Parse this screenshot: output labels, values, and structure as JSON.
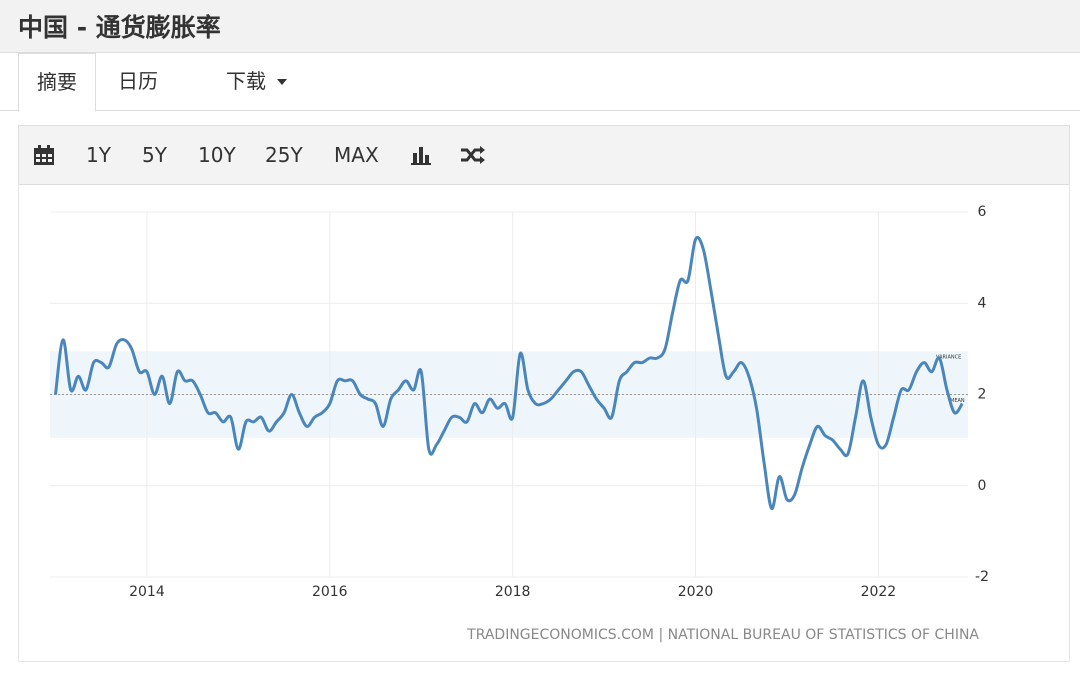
{
  "header": {
    "title": "中国 - 通货膨胀率"
  },
  "tabs": [
    "摘要",
    "日历",
    "下载"
  ],
  "toolbar": {
    "ranges": [
      "1Y",
      "5Y",
      "10Y",
      "25Y",
      "MAX"
    ]
  },
  "chart_data": {
    "type": "line",
    "source": "TRADINGECONOMICS.COM | NATIONAL BUREAU OF STATISTICS OF CHINA",
    "x": [
      2013.0,
      2013.083,
      2013.167,
      2013.25,
      2013.333,
      2013.417,
      2013.5,
      2013.583,
      2013.667,
      2013.75,
      2013.833,
      2013.917,
      2014.0,
      2014.083,
      2014.167,
      2014.25,
      2014.333,
      2014.417,
      2014.5,
      2014.583,
      2014.667,
      2014.75,
      2014.833,
      2014.917,
      2015.0,
      2015.083,
      2015.167,
      2015.25,
      2015.333,
      2015.417,
      2015.5,
      2015.583,
      2015.667,
      2015.75,
      2015.833,
      2015.917,
      2016.0,
      2016.083,
      2016.167,
      2016.25,
      2016.333,
      2016.417,
      2016.5,
      2016.583,
      2016.667,
      2016.75,
      2016.833,
      2016.917,
      2017.0,
      2017.083,
      2017.167,
      2017.25,
      2017.333,
      2017.417,
      2017.5,
      2017.583,
      2017.667,
      2017.75,
      2017.833,
      2017.917,
      2018.0,
      2018.083,
      2018.167,
      2018.25,
      2018.333,
      2018.417,
      2018.5,
      2018.583,
      2018.667,
      2018.75,
      2018.833,
      2018.917,
      2019.0,
      2019.083,
      2019.167,
      2019.25,
      2019.333,
      2019.417,
      2019.5,
      2019.583,
      2019.667,
      2019.75,
      2019.833,
      2019.917,
      2020.0,
      2020.083,
      2020.167,
      2020.25,
      2020.333,
      2020.417,
      2020.5,
      2020.583,
      2020.667,
      2020.75,
      2020.833,
      2020.917,
      2021.0,
      2021.083,
      2021.167,
      2021.25,
      2021.333,
      2021.417,
      2021.5,
      2021.583,
      2021.667,
      2021.75,
      2021.833,
      2021.917,
      2022.0,
      2022.083,
      2022.167,
      2022.25,
      2022.333,
      2022.417,
      2022.5,
      2022.583,
      2022.667,
      2022.75,
      2022.833,
      2022.917
    ],
    "series": [
      {
        "color": "#4a86bb",
        "values": [
          2.0,
          3.2,
          2.1,
          2.4,
          2.1,
          2.7,
          2.7,
          2.6,
          3.1,
          3.2,
          3.0,
          2.5,
          2.5,
          2.0,
          2.4,
          1.8,
          2.5,
          2.3,
          2.3,
          2.0,
          1.6,
          1.6,
          1.4,
          1.5,
          0.8,
          1.4,
          1.4,
          1.5,
          1.2,
          1.4,
          1.6,
          2.0,
          1.6,
          1.3,
          1.5,
          1.6,
          1.8,
          2.3,
          2.3,
          2.3,
          2.0,
          1.9,
          1.8,
          1.3,
          1.9,
          2.1,
          2.3,
          2.1,
          2.5,
          0.8,
          0.9,
          1.2,
          1.5,
          1.5,
          1.4,
          1.8,
          1.6,
          1.9,
          1.7,
          1.8,
          1.5,
          2.9,
          2.1,
          1.8,
          1.8,
          1.9,
          2.1,
          2.3,
          2.5,
          2.5,
          2.2,
          1.9,
          1.7,
          1.5,
          2.3,
          2.5,
          2.7,
          2.7,
          2.8,
          2.8,
          3.0,
          3.8,
          4.5,
          4.5,
          5.4,
          5.2,
          4.3,
          3.3,
          2.4,
          2.5,
          2.7,
          2.4,
          1.7,
          0.5,
          -0.5,
          0.2,
          -0.3,
          -0.2,
          0.4,
          0.9,
          1.3,
          1.1,
          1.0,
          0.8,
          0.7,
          1.5,
          2.3,
          1.5,
          0.9,
          0.9,
          1.5,
          2.1,
          2.1,
          2.5,
          2.7,
          2.5,
          2.8,
          2.1,
          1.6,
          1.8
        ]
      }
    ],
    "band": {
      "label": "VARIANCE",
      "range": [
        1.05,
        2.95
      ],
      "color": "#eef6fb"
    },
    "mean": {
      "label": "MEAN",
      "value": 2.0
    },
    "xlim": [
      2012.94,
      2022.98
    ],
    "xticks": [
      2014,
      2016,
      2018,
      2020,
      2022
    ],
    "ylim": [
      -2,
      6
    ],
    "yticks": [
      -2,
      0,
      2,
      4,
      6
    ],
    "grid": true
  }
}
